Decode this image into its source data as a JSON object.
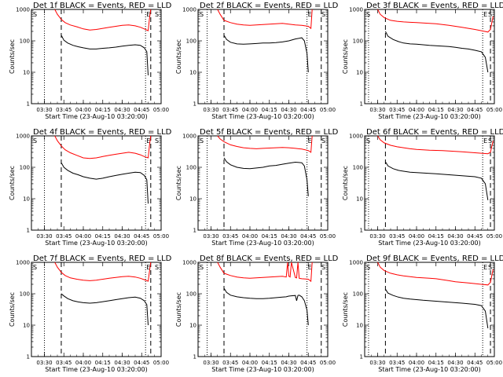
{
  "chart_data": {
    "type": "line",
    "layout": "3x3 grid",
    "xlabel": "Start Time (23-Aug-10 03:20:00)",
    "ylabel": "Counts/sec",
    "y_scale": "log",
    "ylim": [
      1,
      1000
    ],
    "y_ticks": [
      "1",
      "10",
      "100",
      "1000"
    ],
    "x_range_min": [
      0,
      100
    ],
    "x_ticks_min": [
      10,
      25,
      40,
      55,
      70,
      85,
      100
    ],
    "x_tick_labels": [
      "03:30",
      "03:45",
      "04:00",
      "04:15",
      "04:30",
      "04:45",
      "05:00"
    ],
    "colors": {
      "events": "#000000",
      "lld": "#ff0000"
    },
    "markers": {
      "start": "S",
      "end": "E",
      "other": "S"
    },
    "panels": [
      {
        "title": "Det 1f BLACK = Events, RED = LLD",
        "events": {
          "x": [
            23,
            25,
            28,
            32,
            36,
            40,
            45,
            50,
            55,
            60,
            65,
            70,
            75,
            80,
            84,
            87,
            89,
            90
          ],
          "y": [
            150,
            105,
            85,
            72,
            65,
            60,
            55,
            55,
            58,
            60,
            63,
            68,
            72,
            75,
            72,
            60,
            45,
            8
          ]
        },
        "lld": {
          "x": [
            18,
            20,
            23,
            26,
            30,
            35,
            40,
            45,
            50,
            55,
            60,
            65,
            70,
            75,
            80,
            84,
            87,
            90,
            91,
            92
          ],
          "y": [
            1000,
            700,
            480,
            380,
            320,
            280,
            240,
            220,
            230,
            250,
            270,
            290,
            310,
            320,
            300,
            270,
            240,
            210,
            520,
            1000
          ]
        }
      },
      {
        "title": "Det 2f BLACK = Events, RED = LLD",
        "events": {
          "x": [
            20,
            22,
            25,
            30,
            35,
            40,
            45,
            50,
            55,
            60,
            65,
            70,
            75,
            80,
            82,
            84,
            85
          ],
          "y": [
            150,
            110,
            90,
            80,
            78,
            80,
            82,
            85,
            85,
            88,
            92,
            100,
            115,
            125,
            100,
            40,
            10
          ]
        },
        "lld": {
          "x": [
            15,
            17,
            20,
            25,
            30,
            35,
            40,
            45,
            50,
            55,
            60,
            65,
            70,
            75,
            80,
            85,
            87,
            88
          ],
          "y": [
            1000,
            700,
            450,
            380,
            340,
            320,
            310,
            320,
            330,
            340,
            350,
            360,
            340,
            320,
            310,
            290,
            250,
            1000
          ]
        }
      },
      {
        "title": "Det 3f BLACK = Events, RED = LLD",
        "events": {
          "x": [
            16,
            18,
            22,
            26,
            30,
            35,
            40,
            45,
            50,
            55,
            60,
            65,
            70,
            75,
            80,
            85,
            90,
            93,
            95
          ],
          "y": [
            200,
            140,
            110,
            95,
            85,
            80,
            78,
            75,
            72,
            70,
            68,
            66,
            62,
            58,
            55,
            50,
            45,
            30,
            10
          ]
        },
        "lld": {
          "x": [
            10,
            12,
            15,
            20,
            25,
            30,
            35,
            40,
            45,
            50,
            55,
            60,
            65,
            70,
            75,
            80,
            85,
            90,
            95,
            97,
            99
          ],
          "y": [
            1000,
            700,
            550,
            450,
            420,
            400,
            390,
            380,
            370,
            360,
            350,
            330,
            310,
            290,
            270,
            250,
            230,
            210,
            190,
            230,
            600
          ]
        }
      },
      {
        "title": "Det 4f BLACK = Events, RED = LLD",
        "events": {
          "x": [
            23,
            25,
            28,
            32,
            36,
            40,
            45,
            50,
            55,
            60,
            65,
            70,
            75,
            80,
            84,
            87,
            89,
            90
          ],
          "y": [
            140,
            100,
            80,
            65,
            58,
            50,
            45,
            42,
            45,
            50,
            55,
            60,
            65,
            70,
            68,
            55,
            40,
            7
          ]
        },
        "lld": {
          "x": [
            18,
            20,
            23,
            26,
            30,
            35,
            40,
            45,
            50,
            55,
            60,
            65,
            70,
            75,
            80,
            84,
            87,
            90,
            91,
            92
          ],
          "y": [
            1000,
            700,
            480,
            360,
            290,
            240,
            200,
            190,
            200,
            220,
            240,
            260,
            280,
            300,
            280,
            250,
            220,
            200,
            500,
            1000
          ]
        }
      },
      {
        "title": "Det 5f BLACK = Events, RED = LLD",
        "events": {
          "x": [
            20,
            22,
            25,
            30,
            35,
            40,
            45,
            50,
            55,
            60,
            65,
            70,
            75,
            80,
            82,
            84,
            85
          ],
          "y": [
            200,
            150,
            120,
            100,
            92,
            90,
            95,
            100,
            110,
            115,
            125,
            135,
            145,
            140,
            110,
            40,
            12
          ]
        },
        "lld": {
          "x": [
            15,
            17,
            20,
            25,
            30,
            35,
            40,
            45,
            50,
            55,
            60,
            65,
            70,
            75,
            80,
            85,
            87,
            88
          ],
          "y": [
            1000,
            800,
            650,
            520,
            460,
            420,
            400,
            390,
            400,
            410,
            420,
            430,
            420,
            400,
            380,
            340,
            300,
            1000
          ]
        }
      },
      {
        "title": "Det 6f BLACK = Events, RED = LLD",
        "events": {
          "x": [
            16,
            18,
            22,
            26,
            30,
            35,
            40,
            45,
            50,
            55,
            60,
            65,
            70,
            75,
            80,
            85,
            90,
            93,
            95
          ],
          "y": [
            150,
            110,
            90,
            80,
            75,
            70,
            68,
            66,
            64,
            62,
            60,
            58,
            56,
            54,
            52,
            50,
            45,
            30,
            9
          ]
        },
        "lld": {
          "x": [
            10,
            12,
            15,
            20,
            25,
            30,
            35,
            40,
            45,
            50,
            55,
            60,
            65,
            70,
            75,
            80,
            85,
            90,
            95,
            97,
            99
          ],
          "y": [
            1000,
            750,
            600,
            500,
            450,
            420,
            390,
            370,
            360,
            350,
            345,
            340,
            330,
            320,
            310,
            300,
            290,
            280,
            270,
            300,
            700
          ]
        }
      },
      {
        "title": "Det 7f BLACK = Events, RED = LLD",
        "events": {
          "x": [
            23,
            25,
            28,
            32,
            36,
            40,
            45,
            50,
            55,
            60,
            65,
            70,
            75,
            80,
            84,
            87,
            89,
            90
          ],
          "y": [
            100,
            85,
            70,
            60,
            55,
            52,
            50,
            52,
            56,
            60,
            65,
            70,
            75,
            78,
            72,
            60,
            45,
            10
          ]
        },
        "lld": {
          "x": [
            18,
            20,
            23,
            26,
            30,
            35,
            40,
            45,
            50,
            55,
            60,
            65,
            70,
            75,
            80,
            84,
            87,
            90,
            91,
            92
          ],
          "y": [
            1000,
            700,
            480,
            380,
            320,
            290,
            270,
            260,
            270,
            290,
            310,
            330,
            350,
            360,
            340,
            310,
            280,
            250,
            520,
            1000
          ]
        }
      },
      {
        "title": "Det 8f BLACK = Events, RED = LLD",
        "events": {
          "x": [
            20,
            22,
            25,
            30,
            35,
            40,
            45,
            50,
            55,
            60,
            65,
            68,
            69,
            70,
            72,
            75,
            76,
            77,
            78,
            80,
            82,
            84,
            85
          ],
          "y": [
            150,
            110,
            90,
            80,
            75,
            72,
            70,
            70,
            72,
            75,
            78,
            80,
            82,
            84,
            86,
            88,
            60,
            88,
            90,
            80,
            60,
            30,
            10
          ]
        },
        "lld": {
          "x": [
            15,
            17,
            20,
            25,
            30,
            35,
            40,
            45,
            50,
            55,
            60,
            65,
            68,
            69,
            70,
            71,
            72,
            75,
            76,
            77,
            78,
            80,
            85,
            87,
            88
          ],
          "y": [
            1000,
            700,
            450,
            380,
            340,
            320,
            310,
            320,
            330,
            340,
            350,
            360,
            340,
            1000,
            360,
            340,
            1000,
            330,
            320,
            1000,
            310,
            300,
            290,
            250,
            1000
          ]
        }
      },
      {
        "title": "Det 9f BLACK = Events, RED = LLD",
        "events": {
          "x": [
            16,
            18,
            22,
            26,
            30,
            35,
            40,
            45,
            50,
            55,
            60,
            65,
            70,
            75,
            80,
            85,
            90,
            93,
            95
          ],
          "y": [
            140,
            105,
            88,
            78,
            72,
            68,
            65,
            62,
            60,
            58,
            56,
            54,
            52,
            50,
            48,
            46,
            42,
            28,
            8
          ]
        },
        "lld": {
          "x": [
            10,
            12,
            15,
            20,
            25,
            30,
            35,
            40,
            45,
            50,
            55,
            60,
            65,
            70,
            75,
            80,
            85,
            90,
            95,
            97,
            99
          ],
          "y": [
            1000,
            700,
            550,
            450,
            400,
            370,
            350,
            330,
            320,
            310,
            300,
            280,
            260,
            240,
            230,
            220,
            210,
            200,
            190,
            230,
            600
          ]
        }
      }
    ],
    "vlines": [
      {
        "dotted": [
          10,
          88
        ],
        "dashed": [
          23,
          92
        ]
      },
      {
        "dotted": [
          7,
          84
        ],
        "dashed": [
          20,
          95
        ]
      },
      {
        "dotted": [
          3,
          91
        ],
        "dashed": [
          16,
          97
        ]
      },
      {
        "dotted": [
          10,
          88
        ],
        "dashed": [
          23,
          92
        ]
      },
      {
        "dotted": [
          7,
          84
        ],
        "dashed": [
          20,
          95
        ]
      },
      {
        "dotted": [
          3,
          91
        ],
        "dashed": [
          16,
          97
        ]
      },
      {
        "dotted": [
          10,
          88
        ],
        "dashed": [
          23,
          92
        ]
      },
      {
        "dotted": [
          7,
          84
        ],
        "dashed": [
          20,
          95
        ]
      },
      {
        "dotted": [
          3,
          91
        ],
        "dashed": [
          16,
          97
        ]
      }
    ]
  }
}
